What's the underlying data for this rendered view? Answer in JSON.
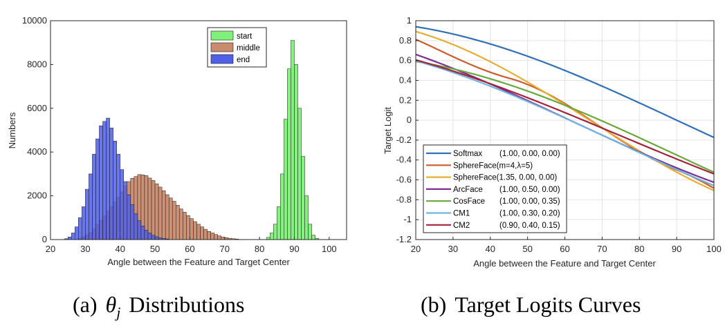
{
  "chart_data": [
    {
      "type": "bar",
      "subtype": "overlapping-histogram",
      "caption_prefix": "(a)",
      "caption_symbol": "θ",
      "caption_subscript": "j",
      "caption_text": "Distributions",
      "xlabel": "Angle between the Feature and Target Center",
      "ylabel": "Numbers",
      "xlim": [
        20,
        105
      ],
      "ylim": [
        0,
        10000
      ],
      "xticks": [
        20,
        30,
        40,
        50,
        60,
        70,
        80,
        90,
        100
      ],
      "yticks": [
        0,
        2000,
        4000,
        6000,
        8000,
        10000
      ],
      "legend_position": "top-right (inside)",
      "grid": false,
      "bin_width": 1,
      "series": [
        {
          "name": "start",
          "color": "#80f07a",
          "bin_start": 82,
          "values": [
            100,
            300,
            700,
            1500,
            3000,
            5500,
            7800,
            9100,
            8000,
            6000,
            3800,
            2000,
            700,
            200,
            50
          ]
        },
        {
          "name": "middle",
          "color": "#c98b6e",
          "bin_start": 28,
          "values": [
            60,
            130,
            220,
            320,
            480,
            680,
            880,
            1080,
            1300,
            1500,
            1720,
            1930,
            2180,
            2450,
            2650,
            2800,
            2880,
            2970,
            2960,
            2920,
            2810,
            2700,
            2550,
            2400,
            2230,
            2050,
            1900,
            1750,
            1570,
            1400,
            1250,
            1100,
            960,
            820,
            700,
            580,
            470,
            370,
            300,
            230,
            170,
            120,
            90,
            60,
            40,
            25
          ]
        },
        {
          "name": "end",
          "color": "#4f5fe6",
          "bin_start": 24,
          "values": [
            40,
            120,
            300,
            580,
            1000,
            1500,
            2300,
            3000,
            3900,
            4600,
            5200,
            5400,
            5550,
            5100,
            4500,
            3900,
            3200,
            2650,
            2050,
            1600,
            1180,
            860,
            620,
            430,
            300,
            200,
            130,
            80,
            50,
            30
          ]
        }
      ]
    },
    {
      "type": "line",
      "caption_prefix": "(b)",
      "caption_text": "Target Logits Curves",
      "xlabel": "Angle between the Feature and Target Center",
      "ylabel": "Target Logit",
      "xlim": [
        20,
        100
      ],
      "ylim": [
        -1.2,
        1
      ],
      "xticks": [
        20,
        30,
        40,
        50,
        60,
        70,
        80,
        90,
        100
      ],
      "yticks": [
        -1.2,
        -1,
        -0.8,
        -0.6,
        -0.4,
        -0.2,
        0,
        0.2,
        0.4,
        0.6,
        0.8,
        1
      ],
      "ytick_labels": [
        "-1.2",
        "-1",
        "-0.8",
        "-0.6",
        "-0.4",
        "-0.2",
        "0",
        "0.2",
        "0.4",
        "0.6",
        "0.8",
        "1"
      ],
      "grid": true,
      "legend_position": "bottom-left (inside)",
      "series": [
        {
          "name": "Softmax",
          "params": "(1.00, 0.00, 0.00)",
          "color": "#2f6fb5",
          "kind": "combined",
          "s": 1.0,
          "m1": 1.0,
          "m2": 0.0,
          "m3": 0.0
        },
        {
          "name": "SphereFace(m=4,λ=5)",
          "params": "",
          "color": "#cc5a2c",
          "kind": "sphereface_lambda",
          "m": 4,
          "lambda": 5
        },
        {
          "name": "SphereFace(1.35, 0.00, 0.00)",
          "params": "",
          "color": "#e6ad33",
          "kind": "combined",
          "m1": 1.35,
          "m2": 0.0,
          "m3": 0.0
        },
        {
          "name": "ArcFace",
          "params": "(1.00, 0.50, 0.00)",
          "color": "#7b2f8f",
          "kind": "combined",
          "m1": 1.0,
          "m2": 0.5,
          "m3": 0.0
        },
        {
          "name": "CosFace",
          "params": "(1.00, 0.00, 0.35)",
          "color": "#6aa73a",
          "kind": "combined",
          "m1": 1.0,
          "m2": 0.0,
          "m3": 0.35
        },
        {
          "name": "CM1",
          "params": "(1.00, 0.30, 0.20)",
          "color": "#6fb3e0",
          "kind": "combined",
          "m1": 1.0,
          "m2": 0.3,
          "m3": 0.2
        },
        {
          "name": "CM2",
          "params": "(0.90, 0.40, 0.15)",
          "color": "#a2233a",
          "kind": "combined",
          "m1": 0.9,
          "m2": 0.4,
          "m3": 0.15
        }
      ]
    }
  ]
}
